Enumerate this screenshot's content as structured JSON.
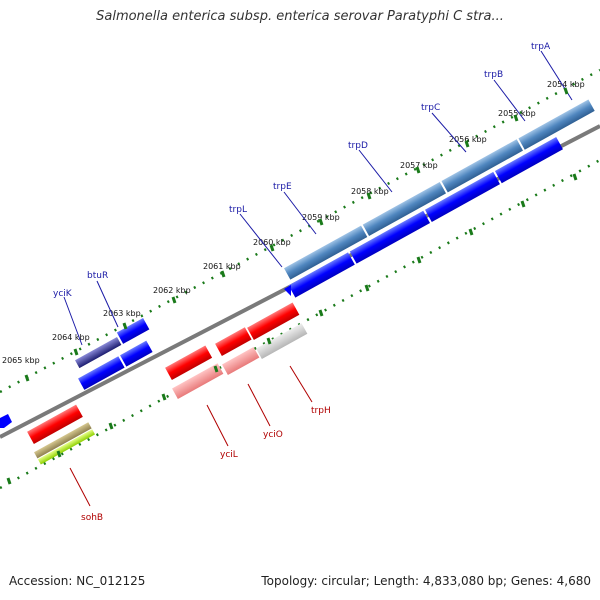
{
  "title": "Salmonella enterica subsp. enterica serovar Paratyphi C stra...",
  "footer": {
    "accession": "Accession: NC_012125",
    "summary": "Topology: circular; Length: 4,833,080 bp; Genes: 4,680"
  },
  "ticks": [
    "2054 kbp",
    "2055 kbp",
    "2056 kbp",
    "2057 kbp",
    "2058 kbp",
    "2059 kbp",
    "2060 kbp",
    "2061 kbp",
    "2062 kbp",
    "2063 kbp",
    "2064 kbp",
    "2065 kbp"
  ],
  "genes_forward": [
    "trpA",
    "trpB",
    "trpC",
    "trpD",
    "trpE",
    "trpL",
    "btuR",
    "yciK"
  ],
  "genes_reverse": [
    "trpH",
    "yciO",
    "yciL",
    "sohB"
  ],
  "colors": {
    "forward_cds": "#0000ff",
    "reverse_cds": "#ff0000",
    "backbone": "#808080",
    "tick_green": "#1a7a1a",
    "forward_label": "#1a1aa6",
    "reverse_label": "#b00000"
  }
}
